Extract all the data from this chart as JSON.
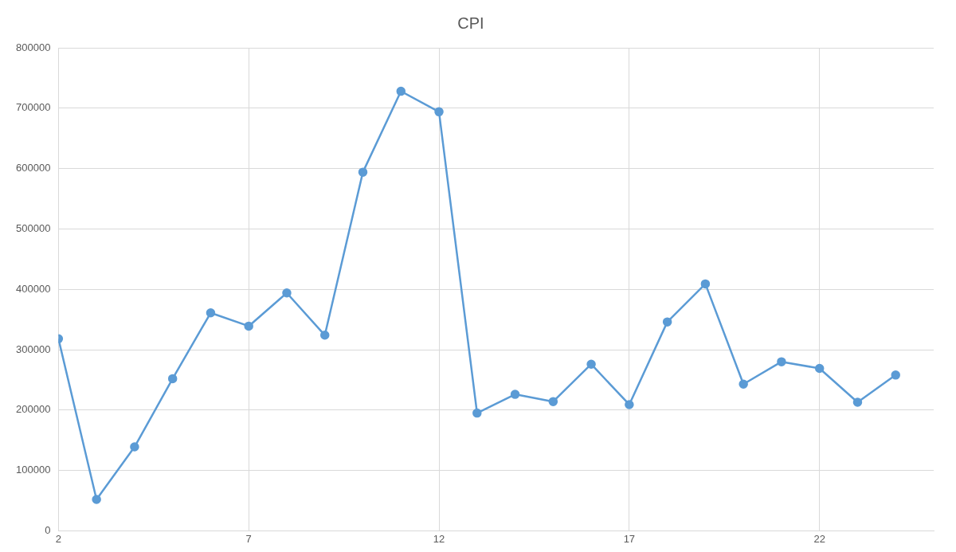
{
  "chart_data": {
    "type": "line",
    "title": "CPI",
    "x": [
      2,
      3,
      4,
      5,
      6,
      7,
      8,
      9,
      10,
      11,
      12,
      13,
      14,
      15,
      16,
      17,
      18,
      19,
      20,
      21,
      22,
      23,
      24
    ],
    "series": [
      {
        "color": "#5b9bd5",
        "values": [
          318000,
          52000,
          139000,
          252000,
          361000,
          339000,
          394000,
          324000,
          594000,
          728000,
          694000,
          195000,
          226000,
          214000,
          276000,
          209000,
          346000,
          409000,
          243000,
          280000,
          269000,
          213000,
          258000
        ]
      }
    ],
    "xlim": [
      2,
      25
    ],
    "xticks": [
      2,
      7,
      12,
      17,
      22
    ],
    "ylim": [
      0,
      800000
    ],
    "yticks": [
      0,
      100000,
      200000,
      300000,
      400000,
      500000,
      600000,
      700000,
      800000
    ],
    "grid": true,
    "legend": false,
    "marker": "circle",
    "line_style": "solid"
  }
}
